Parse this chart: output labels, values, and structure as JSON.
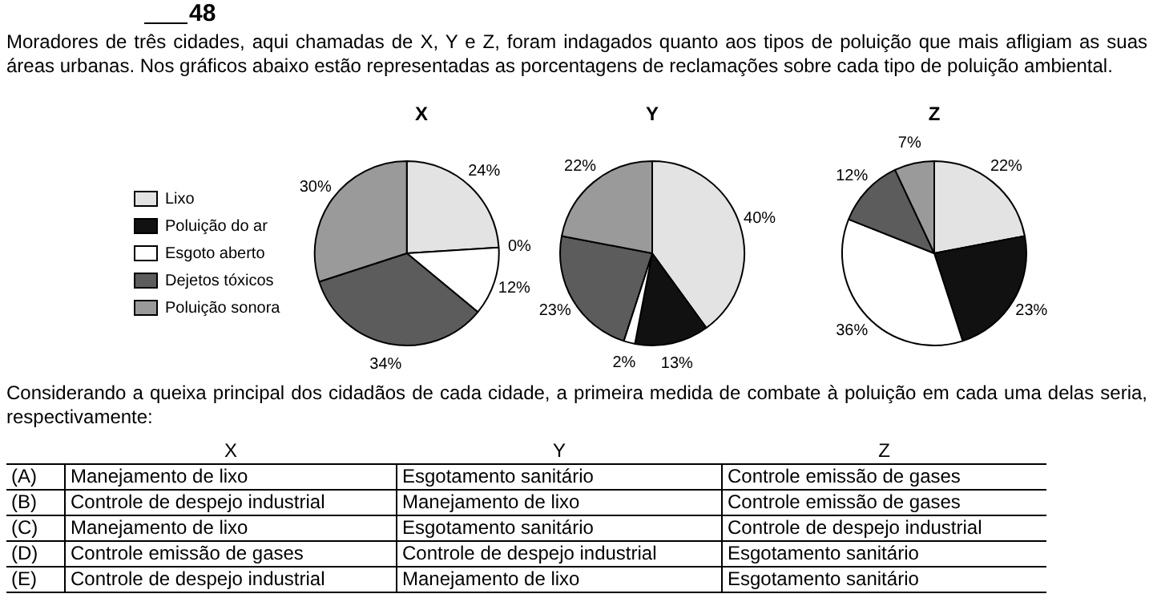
{
  "chart_data": [
    {
      "type": "other",
      "title": "48",
      "annotations": [
        "Moradores de três cidades, aqui chamadas de X, Y e Z, foram indagados quanto aos tipos de poluição que mais afligiam as suas áreas urbanas. Nos gráficos abaixo estão representadas as porcentagens de reclamações sobre cada tipo de poluição ambiental."
      ]
    },
    {
      "type": "pie",
      "title": "X",
      "legend": "left",
      "categories": [
        "Lixo",
        "Poluição do ar",
        "Esgoto aberto",
        "Dejetos tóxicos",
        "Poluição sonora"
      ],
      "values": [
        24,
        0,
        12,
        34,
        30
      ],
      "colors": [
        "#e3e3e3",
        "#111111",
        "#ffffff",
        "#5c5c5c",
        "#9a9a9a"
      ],
      "value_labels": [
        "24%",
        "0%",
        "12%",
        "34%",
        "30%"
      ]
    },
    {
      "type": "pie",
      "title": "Y",
      "categories": [
        null,
        null,
        null,
        null,
        null
      ],
      "values": [
        40,
        13,
        2,
        23,
        22
      ],
      "colors": [
        "#e3e3e3",
        "#111111",
        "#ffffff",
        "#5c5c5c",
        "#9a9a9a"
      ],
      "value_labels": [
        "40%",
        "13%",
        "2%",
        "23%",
        "22%"
      ]
    },
    {
      "type": "pie",
      "title": "Z",
      "categories": [
        null,
        null,
        null,
        null,
        null
      ],
      "values": [
        22,
        23,
        36,
        12,
        7
      ],
      "colors": [
        "#e3e3e3",
        "#111111",
        "#ffffff",
        "#5c5c5c",
        "#9a9a9a"
      ],
      "value_labels": [
        "22%",
        "23%",
        "36%",
        "12%",
        "7%"
      ]
    },
    {
      "type": "other",
      "annotations": [
        "Considerando a queixa principal dos cidadãos de cada cidade, a primeira medida de combate à poluição em cada uma delas seria, respectivamente:",
        "X",
        "Y",
        "Z",
        "(A)",
        "Manejamento de lixo",
        "Esgotamento sanitário",
        "Controle emissão de gases",
        "(B)",
        "Controle de despejo industrial",
        "Manejamento de lixo",
        "Controle emissão de gases",
        "(C)",
        "Manejamento de lixo",
        "Esgotamento sanitário",
        "Controle de despejo industrial",
        "(D)",
        "Controle emissão de gases",
        "Controle de despejo industrial",
        "Esgotamento sanitário",
        "(E)",
        "Controle de despejo industrial",
        "Manejamento de lixo",
        "Esgotamento sanitário"
      ]
    }
  ]
}
